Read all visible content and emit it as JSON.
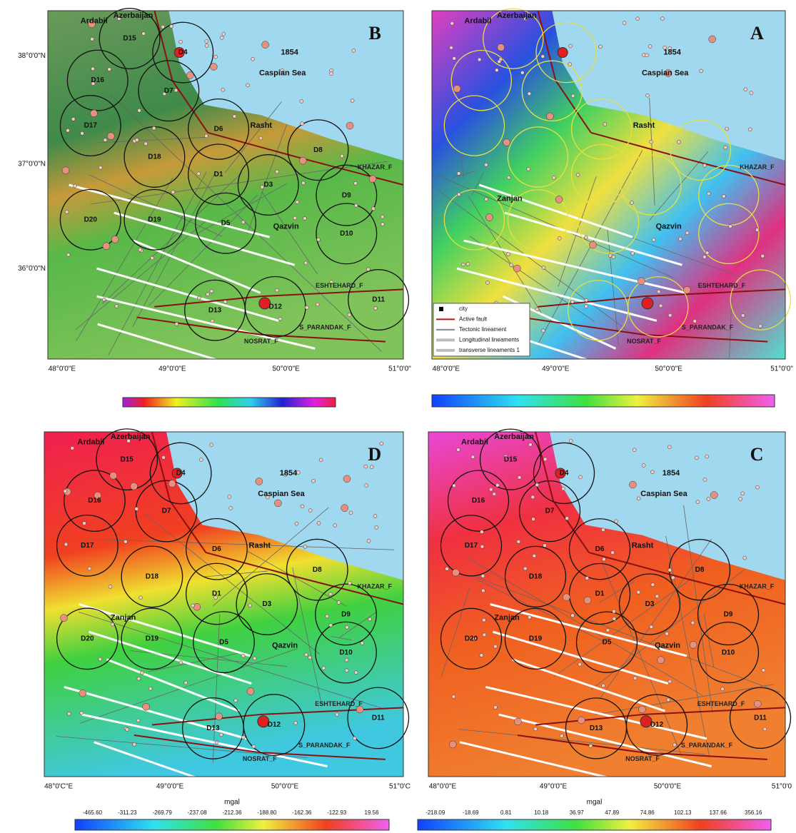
{
  "panels": [
    {
      "letter": "B",
      "places": [
        "Azerbaijan",
        "Ardabil",
        "1854",
        "Caspian Sea",
        "Rasht",
        "Qazvin",
        "ESHTEHARD_F",
        "KHAZAR_F",
        "S_PARANDAK_F",
        "NOSRAT_F"
      ],
      "zones": [
        "D15",
        "D4",
        "D16",
        "D7",
        "D17",
        "D6",
        "D18",
        "D1",
        "D8",
        "D3",
        "D9",
        "D5",
        "D10",
        "D20",
        "D19",
        "D13",
        "D12",
        "D11"
      ],
      "x_labels": [
        "48°0'0\"E",
        "49°0'0\"E",
        "50°0'0\"E",
        "51°0'0\""
      ],
      "y_labels": [
        "38°0'0\"N",
        "37°0'0\"N",
        "36°0'0\"N"
      ]
    },
    {
      "letter": "A",
      "places": [
        "Azerbaijan",
        "Ardabil",
        "1854",
        "Caspian Sea",
        "Rasht",
        "Qazvin",
        "ESHTEHARD_F",
        "KHAZAR_F",
        "S_PARANDAK_F",
        "NOSRAT_F",
        "Zanjan"
      ],
      "x_labels": [
        "48°0'0\"E",
        "49°0'0\"E",
        "50°0'0\"E",
        "51°0'0\""
      ],
      "legend": [
        "city",
        "Active fault",
        "Tectonic lineament",
        "Longitudinal lineaments",
        "transverse lineaments 1"
      ]
    },
    {
      "letter": "D",
      "places": [
        "Azerbaijan",
        "Ardabil",
        "1854",
        "Caspian Sea",
        "Rasht",
        "Qazvin",
        "ESHTEHARD_F",
        "KHAZAR_F",
        "S_PARANDAK_F",
        "NOSRAT_F",
        "Zanjan"
      ],
      "zones": [
        "D15",
        "D4",
        "D16",
        "D7",
        "D17",
        "D6",
        "D18",
        "D1",
        "D8",
        "D3",
        "D9",
        "D5",
        "D10",
        "D20",
        "D19",
        "D13",
        "D12",
        "D11"
      ],
      "x_labels": [
        "48°0'C\"E",
        "49°0'0\"E",
        "50°0'0\"E",
        "51°0'C"
      ],
      "colorbar": {
        "unit": "mgal",
        "ticks": [
          "-465.60",
          "-311.23",
          "-269.79",
          "-237.08",
          "-212.36",
          "-188.80",
          "-162.36",
          "-122.93",
          "19.56"
        ]
      }
    },
    {
      "letter": "C",
      "places": [
        "Azerbaijan",
        "Ardabil",
        "1854",
        "Caspian Sea",
        "Rasht",
        "Qazvin",
        "ESHTEHARD_F",
        "KHAZAR_F",
        "S_PARANDAK_F",
        "NOSRAT_F",
        "Zanjan"
      ],
      "zones": [
        "D15",
        "D4",
        "D16",
        "D7",
        "D17",
        "D6",
        "D18",
        "D1",
        "D8",
        "D3",
        "D9",
        "D5",
        "D10",
        "D20",
        "D19",
        "D13",
        "D12",
        "D11"
      ],
      "x_labels": [
        "48°0'0\"E",
        "49°0'0\"E",
        "50°0'0\"E",
        "51°0'0"
      ],
      "colorbar": {
        "unit": "mgal",
        "ticks": [
          "-218.09",
          "-18.69",
          "0.81",
          "10.18",
          "36.97",
          "47.89",
          "74.86",
          "102.13",
          "137.66",
          "356.16"
        ]
      }
    }
  ]
}
